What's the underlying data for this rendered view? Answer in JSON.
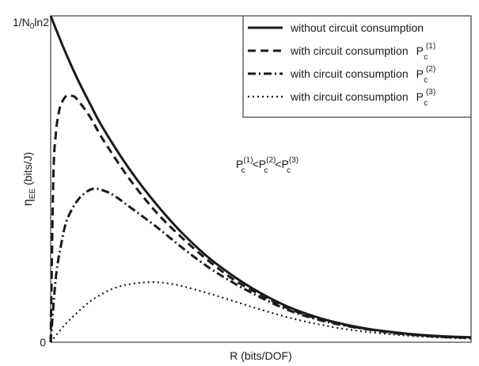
{
  "chart_data": {
    "type": "line",
    "title": "",
    "xlabel": "R (bits/DOF)",
    "ylabel": {
      "main": "η",
      "sub": "EE",
      "unit": "(bits/J)"
    },
    "x_tick_labels": [],
    "y_tick_labels": {
      "top": {
        "part1": "1/N",
        "sub": "0",
        "part2": "ln2"
      },
      "bottom": "0"
    },
    "xlim": [
      0,
      8
    ],
    "ylim": [
      0,
      1
    ],
    "grid": false,
    "legend_position": "top-right",
    "annotation": {
      "text": "P_c^(1) < P_c^(2) < P_c^(3)",
      "base": "P",
      "sub": "c",
      "lt": "<",
      "sup1": "(1)",
      "sup2": "(2)",
      "sup3": "(3)"
    },
    "legend": [
      {
        "text": "without circuit consumption",
        "sym": "",
        "sup": ""
      },
      {
        "text": "with circuit consumption",
        "sym": "P",
        "sub": "c",
        "sup": "(1)"
      },
      {
        "text": "with circuit consumption",
        "sym": "P",
        "sub": "c",
        "sup": "(2)"
      },
      {
        "text": "with circuit consumption",
        "sym": "P",
        "sub": "c",
        "sup": "(3)"
      }
    ],
    "series": [
      {
        "name": "without circuit consumption",
        "style": "solid",
        "x": [
          0,
          0.25,
          0.5,
          0.75,
          1,
          1.5,
          2,
          2.5,
          3,
          3.5,
          4,
          4.5,
          5,
          5.5,
          6,
          6.5,
          7,
          7.5,
          8
        ],
        "y": [
          1.0,
          0.9,
          0.81,
          0.73,
          0.655,
          0.53,
          0.425,
          0.335,
          0.26,
          0.2,
          0.15,
          0.11,
          0.08,
          0.058,
          0.042,
          0.031,
          0.023,
          0.018,
          0.015
        ]
      },
      {
        "name": "with circuit consumption Pc(1)",
        "style": "dashed",
        "x": [
          0,
          0.05,
          0.1,
          0.15,
          0.2,
          0.3,
          0.4,
          0.5,
          0.75,
          1,
          1.5,
          2,
          2.5,
          3,
          3.5,
          4,
          4.5,
          5,
          5.5,
          6,
          6.5,
          7,
          7.5,
          8
        ],
        "y": [
          0,
          0.5,
          0.64,
          0.7,
          0.73,
          0.755,
          0.755,
          0.745,
          0.69,
          0.62,
          0.5,
          0.4,
          0.32,
          0.25,
          0.19,
          0.145,
          0.105,
          0.076,
          0.056,
          0.041,
          0.03,
          0.022,
          0.017,
          0.014
        ]
      },
      {
        "name": "with circuit consumption Pc(2)",
        "style": "dashdot",
        "x": [
          0,
          0.1,
          0.2,
          0.3,
          0.45,
          0.6,
          0.8,
          1,
          1.2,
          1.5,
          2,
          2.5,
          3,
          3.5,
          4,
          4.5,
          5,
          5.5,
          6,
          6.5,
          7,
          7.5,
          8
        ],
        "y": [
          0,
          0.2,
          0.3,
          0.37,
          0.42,
          0.45,
          0.47,
          0.465,
          0.45,
          0.415,
          0.355,
          0.29,
          0.23,
          0.18,
          0.137,
          0.1,
          0.073,
          0.054,
          0.04,
          0.029,
          0.021,
          0.016,
          0.013
        ]
      },
      {
        "name": "with circuit consumption Pc(3)",
        "style": "dotted",
        "x": [
          0,
          0.25,
          0.5,
          0.75,
          1,
          1.25,
          1.5,
          1.75,
          2,
          2.25,
          2.5,
          3,
          3.5,
          4,
          4.5,
          5,
          5.5,
          6,
          6.5,
          7,
          7.5,
          8
        ],
        "y": [
          0,
          0.05,
          0.09,
          0.125,
          0.15,
          0.168,
          0.178,
          0.183,
          0.184,
          0.18,
          0.172,
          0.15,
          0.125,
          0.1,
          0.077,
          0.058,
          0.043,
          0.032,
          0.024,
          0.018,
          0.014,
          0.011
        ]
      }
    ]
  }
}
